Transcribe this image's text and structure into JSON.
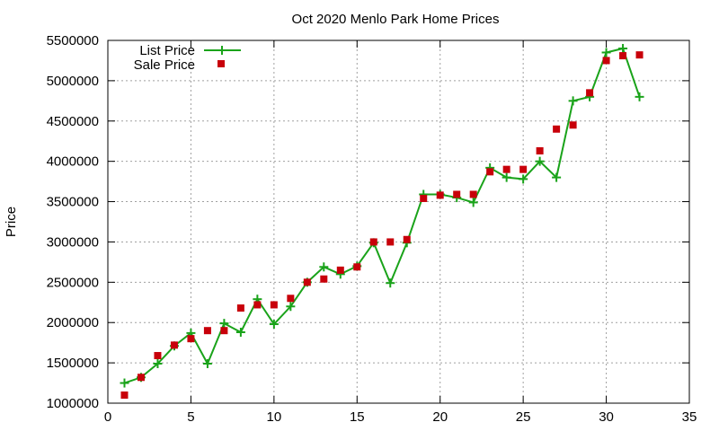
{
  "chart_data": {
    "type": "line",
    "title": "Oct 2020 Menlo Park Home Prices",
    "xlabel": "",
    "ylabel": "Price",
    "xlim": [
      0,
      35
    ],
    "ylim": [
      1000000,
      5500000
    ],
    "xticks": [
      0,
      5,
      10,
      15,
      20,
      25,
      30,
      35
    ],
    "yticks": [
      1000000,
      1500000,
      2000000,
      2500000,
      3000000,
      3500000,
      4000000,
      4500000,
      5000000,
      5500000
    ],
    "grid": true,
    "legend_position": "top-left",
    "series": [
      {
        "name": "List Price",
        "style": "line+markers",
        "marker": "plus",
        "color": "#1aa31a",
        "points": [
          [
            1,
            1250000
          ],
          [
            2,
            1320000
          ],
          [
            3,
            1490000
          ],
          [
            4,
            1710000
          ],
          [
            5,
            1870000
          ],
          [
            6,
            1490000
          ],
          [
            7,
            1990000
          ],
          [
            8,
            1880000
          ],
          [
            9,
            2290000
          ],
          [
            10,
            1980000
          ],
          [
            11,
            2200000
          ],
          [
            12,
            2500000
          ],
          [
            13,
            2690000
          ],
          [
            14,
            2600000
          ],
          [
            15,
            2700000
          ],
          [
            16,
            2990000
          ],
          [
            17,
            2490000
          ],
          [
            18,
            2990000
          ],
          [
            19,
            3590000
          ],
          [
            20,
            3590000
          ],
          [
            21,
            3550000
          ],
          [
            22,
            3490000
          ],
          [
            23,
            3920000
          ],
          [
            24,
            3800000
          ],
          [
            25,
            3780000
          ],
          [
            26,
            4000000
          ],
          [
            27,
            3800000
          ],
          [
            28,
            4750000
          ],
          [
            29,
            4800000
          ],
          [
            30,
            5350000
          ],
          [
            31,
            5400000
          ],
          [
            32,
            4800000
          ]
        ]
      },
      {
        "name": "Sale Price",
        "style": "markers",
        "marker": "square",
        "color": "#c8000a",
        "points": [
          [
            1,
            1100000
          ],
          [
            2,
            1320000
          ],
          [
            3,
            1590000
          ],
          [
            4,
            1720000
          ],
          [
            5,
            1800000
          ],
          [
            6,
            1900000
          ],
          [
            7,
            1900000
          ],
          [
            8,
            2180000
          ],
          [
            9,
            2220000
          ],
          [
            10,
            2220000
          ],
          [
            11,
            2300000
          ],
          [
            12,
            2500000
          ],
          [
            13,
            2540000
          ],
          [
            14,
            2650000
          ],
          [
            15,
            2690000
          ],
          [
            16,
            3000000
          ],
          [
            17,
            3000000
          ],
          [
            18,
            3030000
          ],
          [
            19,
            3540000
          ],
          [
            20,
            3580000
          ],
          [
            21,
            3590000
          ],
          [
            22,
            3590000
          ],
          [
            23,
            3870000
          ],
          [
            24,
            3900000
          ],
          [
            25,
            3900000
          ],
          [
            26,
            4130000
          ],
          [
            27,
            4400000
          ],
          [
            28,
            4450000
          ],
          [
            29,
            4850000
          ],
          [
            30,
            5250000
          ],
          [
            31,
            5310000
          ],
          [
            32,
            5320000
          ]
        ]
      }
    ]
  }
}
